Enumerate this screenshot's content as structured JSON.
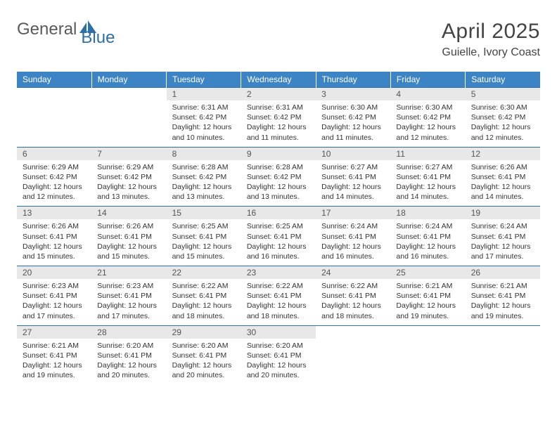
{
  "logo": {
    "text1": "General",
    "text2": "Blue"
  },
  "title": "April 2025",
  "location": "Guielle, Ivory Coast",
  "header_bg": "#3d84c4",
  "rule_color": "#2f6fa8",
  "daynum_bg": "#e8e8e8",
  "weekdays": [
    "Sunday",
    "Monday",
    "Tuesday",
    "Wednesday",
    "Thursday",
    "Friday",
    "Saturday"
  ],
  "weeks": [
    [
      {
        "n": "",
        "sr": "",
        "ss": "",
        "dl": ""
      },
      {
        "n": "",
        "sr": "",
        "ss": "",
        "dl": ""
      },
      {
        "n": "1",
        "sr": "Sunrise: 6:31 AM",
        "ss": "Sunset: 6:42 PM",
        "dl": "Daylight: 12 hours and 10 minutes."
      },
      {
        "n": "2",
        "sr": "Sunrise: 6:31 AM",
        "ss": "Sunset: 6:42 PM",
        "dl": "Daylight: 12 hours and 11 minutes."
      },
      {
        "n": "3",
        "sr": "Sunrise: 6:30 AM",
        "ss": "Sunset: 6:42 PM",
        "dl": "Daylight: 12 hours and 11 minutes."
      },
      {
        "n": "4",
        "sr": "Sunrise: 6:30 AM",
        "ss": "Sunset: 6:42 PM",
        "dl": "Daylight: 12 hours and 12 minutes."
      },
      {
        "n": "5",
        "sr": "Sunrise: 6:30 AM",
        "ss": "Sunset: 6:42 PM",
        "dl": "Daylight: 12 hours and 12 minutes."
      }
    ],
    [
      {
        "n": "6",
        "sr": "Sunrise: 6:29 AM",
        "ss": "Sunset: 6:42 PM",
        "dl": "Daylight: 12 hours and 12 minutes."
      },
      {
        "n": "7",
        "sr": "Sunrise: 6:29 AM",
        "ss": "Sunset: 6:42 PM",
        "dl": "Daylight: 12 hours and 13 minutes."
      },
      {
        "n": "8",
        "sr": "Sunrise: 6:28 AM",
        "ss": "Sunset: 6:42 PM",
        "dl": "Daylight: 12 hours and 13 minutes."
      },
      {
        "n": "9",
        "sr": "Sunrise: 6:28 AM",
        "ss": "Sunset: 6:42 PM",
        "dl": "Daylight: 12 hours and 13 minutes."
      },
      {
        "n": "10",
        "sr": "Sunrise: 6:27 AM",
        "ss": "Sunset: 6:41 PM",
        "dl": "Daylight: 12 hours and 14 minutes."
      },
      {
        "n": "11",
        "sr": "Sunrise: 6:27 AM",
        "ss": "Sunset: 6:41 PM",
        "dl": "Daylight: 12 hours and 14 minutes."
      },
      {
        "n": "12",
        "sr": "Sunrise: 6:26 AM",
        "ss": "Sunset: 6:41 PM",
        "dl": "Daylight: 12 hours and 14 minutes."
      }
    ],
    [
      {
        "n": "13",
        "sr": "Sunrise: 6:26 AM",
        "ss": "Sunset: 6:41 PM",
        "dl": "Daylight: 12 hours and 15 minutes."
      },
      {
        "n": "14",
        "sr": "Sunrise: 6:26 AM",
        "ss": "Sunset: 6:41 PM",
        "dl": "Daylight: 12 hours and 15 minutes."
      },
      {
        "n": "15",
        "sr": "Sunrise: 6:25 AM",
        "ss": "Sunset: 6:41 PM",
        "dl": "Daylight: 12 hours and 15 minutes."
      },
      {
        "n": "16",
        "sr": "Sunrise: 6:25 AM",
        "ss": "Sunset: 6:41 PM",
        "dl": "Daylight: 12 hours and 16 minutes."
      },
      {
        "n": "17",
        "sr": "Sunrise: 6:24 AM",
        "ss": "Sunset: 6:41 PM",
        "dl": "Daylight: 12 hours and 16 minutes."
      },
      {
        "n": "18",
        "sr": "Sunrise: 6:24 AM",
        "ss": "Sunset: 6:41 PM",
        "dl": "Daylight: 12 hours and 16 minutes."
      },
      {
        "n": "19",
        "sr": "Sunrise: 6:24 AM",
        "ss": "Sunset: 6:41 PM",
        "dl": "Daylight: 12 hours and 17 minutes."
      }
    ],
    [
      {
        "n": "20",
        "sr": "Sunrise: 6:23 AM",
        "ss": "Sunset: 6:41 PM",
        "dl": "Daylight: 12 hours and 17 minutes."
      },
      {
        "n": "21",
        "sr": "Sunrise: 6:23 AM",
        "ss": "Sunset: 6:41 PM",
        "dl": "Daylight: 12 hours and 17 minutes."
      },
      {
        "n": "22",
        "sr": "Sunrise: 6:22 AM",
        "ss": "Sunset: 6:41 PM",
        "dl": "Daylight: 12 hours and 18 minutes."
      },
      {
        "n": "23",
        "sr": "Sunrise: 6:22 AM",
        "ss": "Sunset: 6:41 PM",
        "dl": "Daylight: 12 hours and 18 minutes."
      },
      {
        "n": "24",
        "sr": "Sunrise: 6:22 AM",
        "ss": "Sunset: 6:41 PM",
        "dl": "Daylight: 12 hours and 18 minutes."
      },
      {
        "n": "25",
        "sr": "Sunrise: 6:21 AM",
        "ss": "Sunset: 6:41 PM",
        "dl": "Daylight: 12 hours and 19 minutes."
      },
      {
        "n": "26",
        "sr": "Sunrise: 6:21 AM",
        "ss": "Sunset: 6:41 PM",
        "dl": "Daylight: 12 hours and 19 minutes."
      }
    ],
    [
      {
        "n": "27",
        "sr": "Sunrise: 6:21 AM",
        "ss": "Sunset: 6:41 PM",
        "dl": "Daylight: 12 hours and 19 minutes."
      },
      {
        "n": "28",
        "sr": "Sunrise: 6:20 AM",
        "ss": "Sunset: 6:41 PM",
        "dl": "Daylight: 12 hours and 20 minutes."
      },
      {
        "n": "29",
        "sr": "Sunrise: 6:20 AM",
        "ss": "Sunset: 6:41 PM",
        "dl": "Daylight: 12 hours and 20 minutes."
      },
      {
        "n": "30",
        "sr": "Sunrise: 6:20 AM",
        "ss": "Sunset: 6:41 PM",
        "dl": "Daylight: 12 hours and 20 minutes."
      },
      {
        "n": "",
        "sr": "",
        "ss": "",
        "dl": ""
      },
      {
        "n": "",
        "sr": "",
        "ss": "",
        "dl": ""
      },
      {
        "n": "",
        "sr": "",
        "ss": "",
        "dl": ""
      }
    ]
  ]
}
